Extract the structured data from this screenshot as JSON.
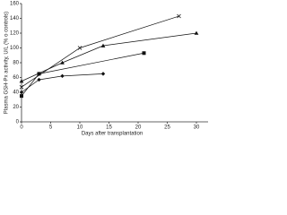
{
  "chart_data": {
    "type": "line",
    "x_label": "Days after transplantation",
    "y_label": "Plasma GSH-Px activity, U/L (% o controls)",
    "xlim": [
      0,
      32
    ],
    "xticks": [
      0,
      5,
      10,
      15,
      20,
      25,
      30
    ],
    "ylim": [
      0,
      160
    ],
    "yticks": [
      0,
      20,
      40,
      60,
      80,
      100,
      120,
      140,
      160
    ],
    "series": [
      {
        "color": "#111111",
        "marker": "diamond",
        "x": [
          0,
          3,
          7,
          14
        ],
        "values": [
          40,
          57,
          62,
          65
        ]
      },
      {
        "color": "#111111",
        "marker": "square",
        "x": [
          0,
          3,
          21
        ],
        "values": [
          35,
          65,
          93
        ]
      },
      {
        "color": "#111111",
        "marker": "triangle",
        "x": [
          0,
          7,
          14,
          30
        ],
        "values": [
          55,
          80,
          103,
          120
        ]
      },
      {
        "color": "#111111",
        "marker": "cross",
        "x": [
          0,
          10,
          27
        ],
        "values": [
          47,
          100,
          143
        ]
      }
    ]
  }
}
